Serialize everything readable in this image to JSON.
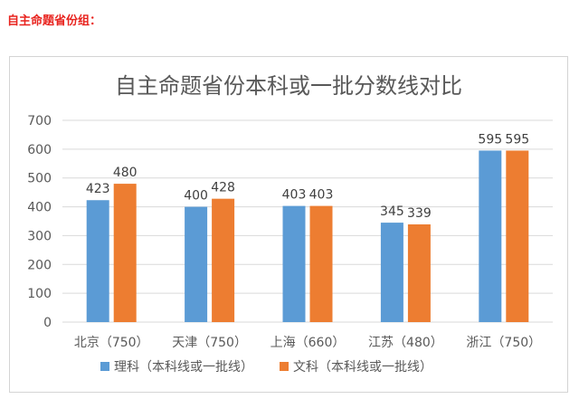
{
  "heading": "自主命题省份组：",
  "colors": {
    "heading": "#e8231e",
    "series_science": "#5b9bd5",
    "series_arts": "#ed7d31",
    "grid": "#d9d9d9",
    "axis_text": "#595959",
    "title_text": "#595959"
  },
  "chart_data": {
    "type": "bar",
    "title": "自主命题省份本科或一批分数线对比",
    "categories": [
      "北京（750）",
      "天津（750）",
      "上海（660）",
      "江苏（480）",
      "浙江（750）"
    ],
    "series": [
      {
        "name": "理科（本科线或一批线）",
        "values": [
          423,
          400,
          403,
          345,
          595
        ]
      },
      {
        "name": "文科（本科线或一批线）",
        "values": [
          480,
          428,
          403,
          339,
          595
        ]
      }
    ],
    "ylim": [
      0,
      700
    ],
    "yticks": [
      0,
      100,
      200,
      300,
      400,
      500,
      600,
      700
    ],
    "grid": true,
    "legend": "bottom",
    "data_labels": true,
    "xlabel": "",
    "ylabel": ""
  }
}
